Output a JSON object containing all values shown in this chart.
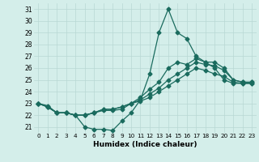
{
  "xlabel": "Humidex (Indice chaleur)",
  "ylabel": "",
  "xlim": [
    -0.5,
    23.5
  ],
  "ylim": [
    20.5,
    31.5
  ],
  "yticks": [
    21,
    22,
    23,
    24,
    25,
    26,
    27,
    28,
    29,
    30,
    31
  ],
  "xticks": [
    0,
    1,
    2,
    3,
    4,
    5,
    6,
    7,
    8,
    9,
    10,
    11,
    12,
    13,
    14,
    15,
    16,
    17,
    18,
    19,
    20,
    21,
    22,
    23
  ],
  "bg_color": "#d4eeea",
  "grid_color": "#b8d8d4",
  "line_color": "#1a6b5e",
  "series": [
    [
      23.0,
      22.8,
      22.2,
      22.2,
      22.0,
      21.0,
      20.8,
      20.8,
      20.7,
      21.5,
      22.2,
      23.3,
      25.5,
      29.0,
      31.0,
      29.0,
      28.5,
      27.0,
      26.5,
      26.0,
      25.0,
      24.7,
      24.7,
      24.7
    ],
    [
      23.0,
      22.7,
      22.2,
      22.2,
      22.0,
      22.0,
      22.2,
      22.4,
      22.4,
      22.5,
      23.0,
      23.5,
      24.2,
      24.8,
      26.0,
      26.5,
      26.3,
      26.8,
      26.5,
      26.5,
      26.0,
      25.0,
      24.8,
      24.8
    ],
    [
      23.0,
      22.7,
      22.2,
      22.2,
      22.0,
      22.0,
      22.2,
      22.5,
      22.5,
      22.7,
      23.0,
      23.3,
      23.8,
      24.3,
      25.0,
      25.5,
      26.0,
      26.5,
      26.3,
      26.2,
      25.8,
      25.0,
      24.8,
      24.8
    ],
    [
      23.0,
      22.7,
      22.2,
      22.2,
      22.0,
      22.0,
      22.2,
      22.5,
      22.5,
      22.7,
      23.0,
      23.2,
      23.5,
      24.0,
      24.5,
      25.0,
      25.5,
      26.0,
      25.8,
      25.5,
      25.3,
      24.8,
      24.7,
      24.7
    ]
  ],
  "marker": "D",
  "markersize": 2.5,
  "linewidth": 0.9
}
